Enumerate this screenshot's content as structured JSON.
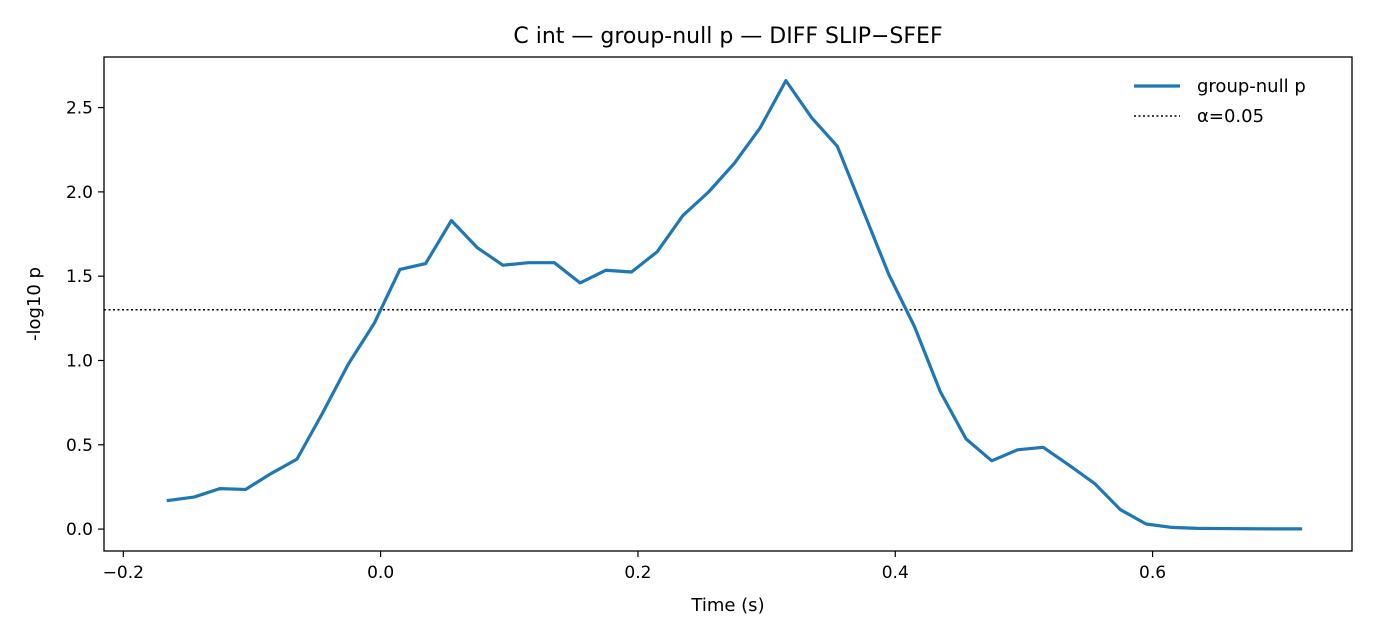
{
  "chart_data": {
    "type": "line",
    "title": "C int — group-null p — DIFF SLIP−SFEF",
    "xlabel": "Time (s)",
    "ylabel": "-log10 p",
    "xlim": [
      -0.215,
      0.755
    ],
    "ylim": [
      -0.13,
      2.8
    ],
    "x_ticks": [
      -0.2,
      0.0,
      0.2,
      0.4,
      0.6
    ],
    "x_tick_labels": [
      "−0.2",
      "0.0",
      "0.2",
      "0.4",
      "0.6"
    ],
    "y_ticks": [
      0.0,
      0.5,
      1.0,
      1.5,
      2.0,
      2.5
    ],
    "y_tick_labels": [
      "0.0",
      "0.5",
      "1.0",
      "1.5",
      "2.0",
      "2.5"
    ],
    "grid": false,
    "legend_position": "top-right",
    "series": [
      {
        "name": "group-null p",
        "color": "#1f77b4",
        "style": "solid",
        "x": [
          -0.165,
          -0.145,
          -0.125,
          -0.105,
          -0.085,
          -0.065,
          -0.045,
          -0.025,
          -0.005,
          0.015,
          0.035,
          0.055,
          0.075,
          0.095,
          0.115,
          0.135,
          0.155,
          0.175,
          0.195,
          0.215,
          0.235,
          0.255,
          0.275,
          0.295,
          0.315,
          0.335,
          0.355,
          0.375,
          0.395,
          0.415,
          0.435,
          0.455,
          0.475,
          0.495,
          0.515,
          0.535,
          0.555,
          0.575,
          0.595,
          0.615,
          0.635,
          0.655,
          0.675,
          0.695,
          0.715
        ],
        "y": [
          0.17,
          0.19,
          0.24,
          0.235,
          0.33,
          0.415,
          0.69,
          0.98,
          1.22,
          1.54,
          1.575,
          1.83,
          1.67,
          1.565,
          1.58,
          1.58,
          1.46,
          1.535,
          1.525,
          1.645,
          1.86,
          2.0,
          2.17,
          2.38,
          2.66,
          2.44,
          2.27,
          1.89,
          1.51,
          1.2,
          0.815,
          0.535,
          0.405,
          0.47,
          0.485,
          0.38,
          0.27,
          0.115,
          0.03,
          0.01,
          0.004,
          0.003,
          0.002,
          0.001,
          0.001
        ]
      },
      {
        "name": "α=0.05",
        "color": "#000000",
        "style": "dotted",
        "hline": 1.301
      }
    ]
  }
}
